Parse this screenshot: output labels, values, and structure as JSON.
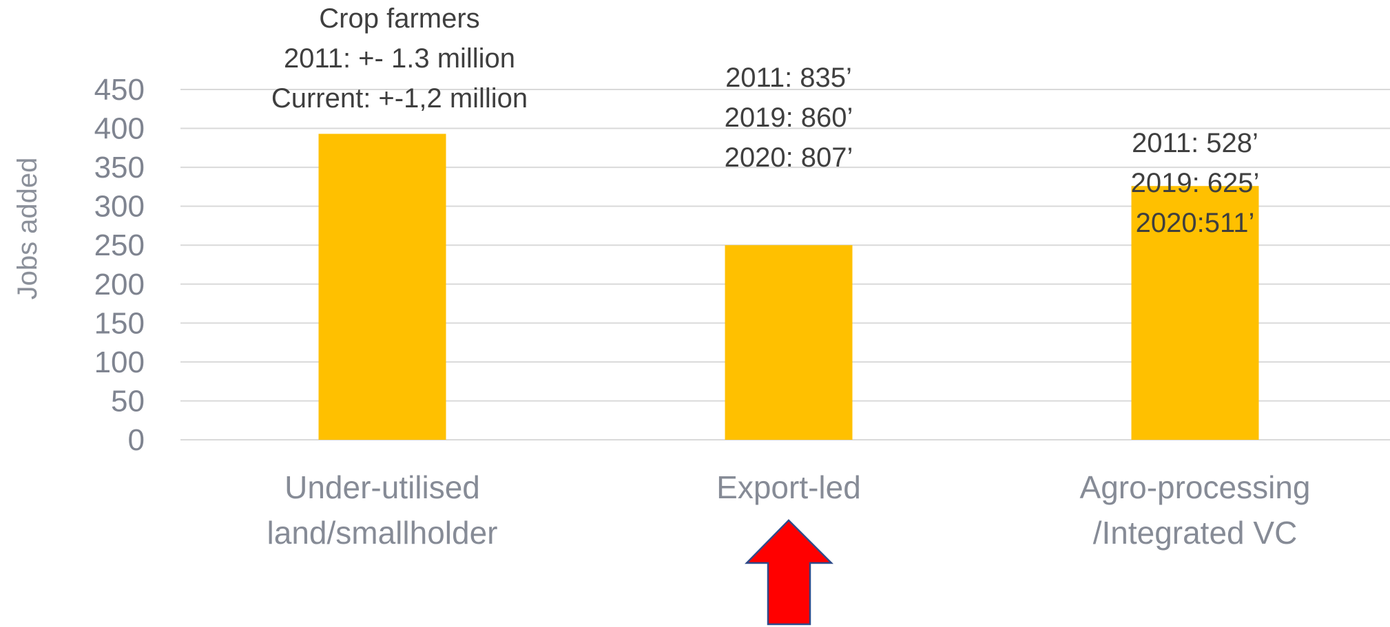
{
  "chart_data": {
    "type": "bar",
    "title": "",
    "xlabel": "",
    "ylabel": "Jobs added",
    "ylim": [
      0,
      450
    ],
    "yticks": [
      0,
      50,
      100,
      150,
      200,
      250,
      300,
      350,
      400,
      450
    ],
    "categories": [
      [
        "Under-utilised",
        "land/smallholder"
      ],
      [
        "Export-led"
      ],
      [
        "Agro-processing",
        "/Integrated VC"
      ]
    ],
    "values": [
      393,
      250,
      326
    ],
    "bar_color": "#FFC000",
    "grid": true,
    "legend": "none",
    "annotations": [
      [
        "Crop farmers",
        "2011: +- 1.3 million",
        "Current: +-1,2 million"
      ],
      [
        "2011: 835’",
        "2019: 860’",
        "2020: 807’"
      ],
      [
        "2011: 528’",
        "2019: 625’",
        "2020:511’"
      ]
    ]
  },
  "indicator": {
    "icon": "up-arrow-icon",
    "points_to": "Export-led",
    "fill_color": "#FF0000",
    "stroke_color": "#2F4B8A"
  }
}
